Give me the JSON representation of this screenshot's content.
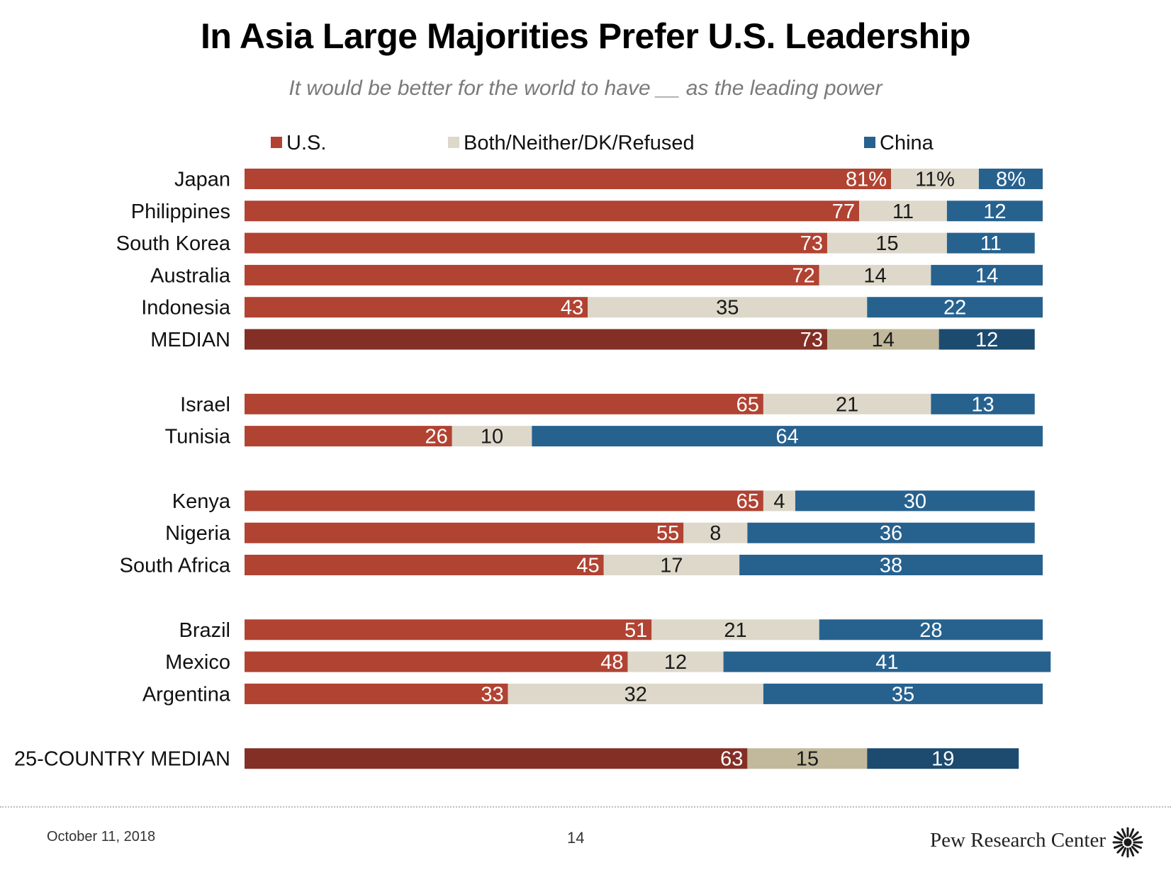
{
  "title": "In Asia Large Majorities Prefer U.S. Leadership",
  "subtitle": "It would be better for the world to have __ as the leading power",
  "footer": {
    "date": "October 11, 2018",
    "page_number": "14",
    "brand": "Pew Research Center"
  },
  "colors": {
    "us": "#b14332",
    "both": "#ddd8ca",
    "china": "#27628f",
    "us_median": "#842f25",
    "both_median": "#c2b99c",
    "china_median": "#1d4b6f"
  },
  "chart_data": {
    "type": "bar",
    "orientation": "horizontal",
    "stacked": true,
    "legend_position": "top",
    "legend": [
      "U.S.",
      "Both/Neither/DK/Refused",
      "China"
    ],
    "xlim": [
      0,
      100
    ],
    "grid": false,
    "groups": [
      [
        {
          "label": "Japan",
          "values": [
            81,
            11,
            8
          ],
          "value_labels": [
            "81%",
            "11%",
            "8%"
          ],
          "median": false
        },
        {
          "label": "Philippines",
          "values": [
            77,
            11,
            12
          ],
          "value_labels": [
            "77",
            "11",
            "12"
          ],
          "median": false
        },
        {
          "label": "South Korea",
          "values": [
            73,
            15,
            11
          ],
          "value_labels": [
            "73",
            "15",
            "11"
          ],
          "median": false
        },
        {
          "label": "Australia",
          "values": [
            72,
            14,
            14
          ],
          "value_labels": [
            "72",
            "14",
            "14"
          ],
          "median": false
        },
        {
          "label": "Indonesia",
          "values": [
            43,
            35,
            22
          ],
          "value_labels": [
            "43",
            "35",
            "22"
          ],
          "median": false
        },
        {
          "label": "MEDIAN",
          "values": [
            73,
            14,
            12
          ],
          "value_labels": [
            "73",
            "14",
            "12"
          ],
          "median": true
        }
      ],
      [
        {
          "label": "Israel",
          "values": [
            65,
            21,
            13
          ],
          "value_labels": [
            "65",
            "21",
            "13"
          ],
          "median": false
        },
        {
          "label": "Tunisia",
          "values": [
            26,
            10,
            64
          ],
          "value_labels": [
            "26",
            "10",
            "64"
          ],
          "median": false
        }
      ],
      [
        {
          "label": "Kenya",
          "values": [
            65,
            4,
            30
          ],
          "value_labels": [
            "65",
            "4",
            "30"
          ],
          "median": false
        },
        {
          "label": "Nigeria",
          "values": [
            55,
            8,
            36
          ],
          "value_labels": [
            "55",
            "8",
            "36"
          ],
          "median": false
        },
        {
          "label": "South Africa",
          "values": [
            45,
            17,
            38
          ],
          "value_labels": [
            "45",
            "17",
            "38"
          ],
          "median": false
        }
      ],
      [
        {
          "label": "Brazil",
          "values": [
            51,
            21,
            28
          ],
          "value_labels": [
            "51",
            "21",
            "28"
          ],
          "median": false
        },
        {
          "label": "Mexico",
          "values": [
            48,
            12,
            41
          ],
          "value_labels": [
            "48",
            "12",
            "41"
          ],
          "median": false
        },
        {
          "label": "Argentina",
          "values": [
            33,
            32,
            35
          ],
          "value_labels": [
            "33",
            "32",
            "35"
          ],
          "median": false
        }
      ],
      [
        {
          "label": "25-COUNTRY MEDIAN",
          "values": [
            63,
            15,
            19
          ],
          "value_labels": [
            "63",
            "15",
            "19"
          ],
          "median": true
        }
      ]
    ]
  }
}
